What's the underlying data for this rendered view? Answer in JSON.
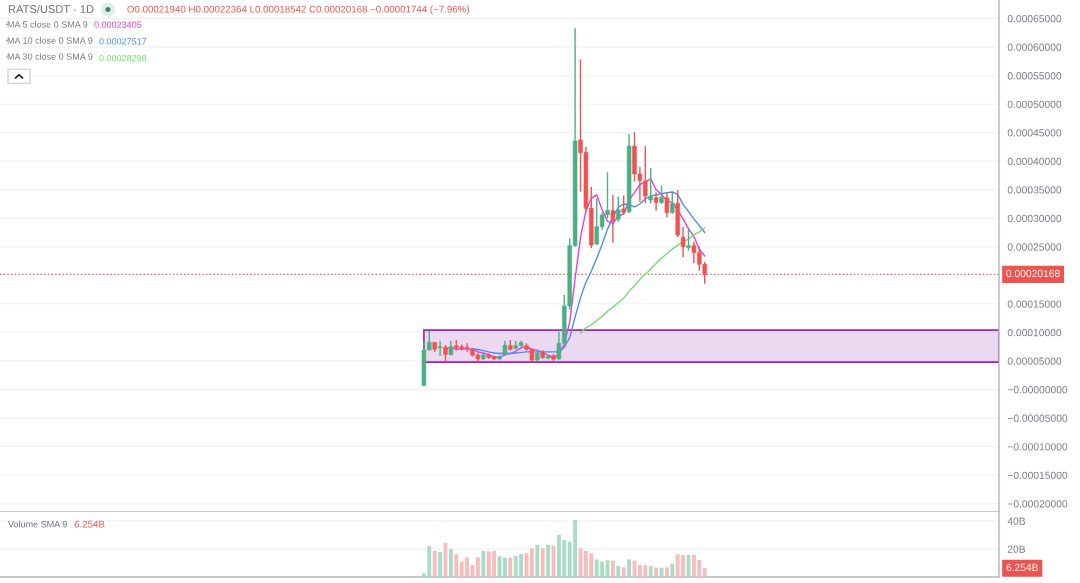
{
  "chart_data": [
    {
      "type": "candlestick",
      "title": "RATS/USDT · 1D",
      "annotations": [
        "O0.00021940 H0.00022364 L0.00018542 C0.00020168 −0.00001744 (−7.96%)",
        "0.00023405",
        "0.00027517",
        "0.00028298"
      ],
      "categories": [
        null,
        null,
        null,
        null,
        null,
        null,
        null,
        null,
        null,
        null,
        null,
        null,
        null,
        null,
        null,
        null,
        null,
        null,
        null,
        null,
        null,
        null,
        null,
        null,
        null,
        null,
        null,
        null,
        null,
        null,
        null,
        null,
        null,
        null,
        null,
        null,
        null,
        null,
        null,
        null,
        null,
        null,
        null,
        null,
        null,
        null,
        null,
        null,
        null,
        null,
        null,
        null,
        null,
        null,
        null,
        null,
        null,
        null,
        null,
        null,
        null,
        null,
        null,
        null,
        null,
        null,
        null,
        null,
        null,
        null,
        null,
        null,
        null,
        null,
        null,
        null,
        null,
        null,
        null,
        null,
        null,
        null,
        null,
        null,
        null,
        null,
        null,
        null,
        null,
        null,
        null,
        null,
        null,
        null,
        null,
        null,
        null,
        null,
        null,
        null,
        null,
        null,
        null,
        null,
        null,
        null,
        null,
        null,
        null,
        null,
        null,
        null,
        null,
        null,
        null,
        null,
        null,
        null,
        null,
        null,
        null,
        null,
        null,
        null,
        null,
        null,
        null,
        null,
        null,
        null,
        null,
        null,
        null,
        null,
        null,
        null,
        null,
        null,
        null,
        null,
        null,
        null,
        null,
        null,
        null,
        null,
        null,
        null,
        null,
        null,
        null,
        null,
        null,
        null,
        null,
        null,
        null,
        null,
        null,
        null,
        null,
        null,
        null,
        null,
        null,
        null,
        null,
        null,
        null,
        null,
        null,
        null,
        null,
        null,
        null,
        null,
        null,
        null,
        null,
        null,
        null,
        null,
        null,
        null,
        null
      ],
      "ohlc": [
        null,
        null,
        null,
        null,
        null,
        null,
        null,
        null,
        null,
        null,
        null,
        null,
        null,
        null,
        null,
        null,
        null,
        null,
        null,
        null,
        null,
        null,
        null,
        null,
        null,
        null,
        null,
        null,
        null,
        null,
        null,
        null,
        null,
        null,
        null,
        null,
        null,
        null,
        null,
        null,
        null,
        null,
        null,
        null,
        null,
        null,
        null,
        null,
        null,
        null,
        null,
        null,
        null,
        null,
        null,
        null,
        null,
        null,
        null,
        null,
        null,
        null,
        null,
        null,
        null,
        null,
        null,
        null,
        null,
        null,
        null,
        null,
        null,
        null,
        null,
        null,
        null,
        null,
        [
          6.7e-06,
          8.38e-05,
          6.7e-06,
          6.92e-05
        ],
        [
          6.92e-05,
          0.0001025,
          6.92e-05,
          8.27e-05
        ],
        [
          8.27e-05,
          8.3e-05,
          6.57e-05,
          7.05e-05
        ],
        [
          7.3e-05,
          8.55e-05,
          5.87e-05,
          7.5e-05
        ],
        [
          7.4e-05,
          7.8e-05,
          4.77e-05,
          6.17e-05
        ],
        [
          6.1e-05,
          8.55e-05,
          6e-05,
          7.5e-05
        ],
        [
          7.68e-05,
          8.67e-05,
          6.8e-05,
          7.33e-05
        ],
        [
          7.5e-05,
          7.9e-05,
          6.8e-05,
          7.2e-05
        ],
        [
          7.4e-05,
          8.1e-05,
          6.63e-05,
          7.3e-05
        ],
        [
          7.05e-05,
          7.3e-05,
          5.8e-05,
          6e-05
        ],
        [
          6.05e-05,
          6.4e-05,
          5e-05,
          5.35e-05
        ],
        [
          5.35e-05,
          6.4e-05,
          5.2e-05,
          6.05e-05
        ],
        [
          6.05e-05,
          6.3e-05,
          5.4e-05,
          5.58e-05
        ],
        [
          5.76e-05,
          5.9e-05,
          5.2e-05,
          5.35e-05
        ],
        [
          5.35e-05,
          6e-05,
          5.2e-05,
          5.76e-05
        ],
        [
          6.05e-05,
          8.55e-05,
          5.9e-05,
          7.75e-05
        ],
        [
          7.68e-05,
          8.67e-05,
          6.8e-05,
          7.05e-05
        ],
        [
          7.2e-05,
          8.55e-05,
          7e-05,
          7.68e-05
        ],
        [
          7.68e-05,
          8.55e-05,
          7.5e-05,
          8.2e-05
        ],
        [
          7.68e-05,
          8.1e-05,
          6.8e-05,
          7.05e-05
        ],
        [
          7.05e-05,
          7.2e-05,
          4.9e-05,
          5.17e-05
        ],
        [
          5.17e-05,
          6.9e-05,
          4.9e-05,
          6.35e-05
        ],
        [
          6.45e-05,
          6.9e-05,
          5.4e-05,
          5.58e-05
        ],
        [
          5.5e-05,
          6e-05,
          5.3e-05,
          5.76e-05
        ],
        [
          5.9e-05,
          6.2e-05,
          5e-05,
          5.3e-05
        ],
        [
          5.35e-05,
          0.0001013,
          5.2e-05,
          8.1e-05
        ],
        [
          8.1e-05,
          0.0001656,
          8e-05,
          0.0001463
        ],
        [
          0.0001463,
          0.000265,
          0.00014,
          0.000252
        ],
        [
          0.000252,
          0.0006328,
          0.00025,
          0.0004354
        ],
        [
          0.000437,
          0.0005785,
          0.0003466,
          0.000415
        ],
        [
          0.0004156,
          0.0004254,
          0.000312,
          0.0003175
        ],
        [
          0.0003175,
          0.000355,
          0.0002474,
          0.000253
        ],
        [
          0.000255,
          0.000334,
          0.000253,
          0.0002853
        ],
        [
          0.0002853,
          0.00031,
          0.0002795,
          0.0003057
        ],
        [
          0.000306,
          0.0003805,
          0.0003,
          0.000314
        ],
        [
          0.0003133,
          0.0003408,
          0.0002572,
          0.0002958
        ],
        [
          0.0002982,
          0.000338,
          0.000294,
          0.0003145
        ],
        [
          0.0003163,
          0.00034,
          0.000307,
          0.0003105
        ],
        [
          0.0003115,
          0.0004477,
          0.0003087,
          0.0004266
        ],
        [
          0.0004266,
          0.0004506,
          0.0003641,
          0.0003776
        ],
        [
          0.0003776,
          0.0003904,
          0.000329,
          0.000366
        ],
        [
          0.0003653,
          0.0004266,
          0.0003268,
          0.000339
        ],
        [
          0.000332,
          0.0003876,
          0.000326,
          0.0003378
        ],
        [
          0.000336,
          0.000345,
          0.0003133,
          0.000328
        ],
        [
          0.0003273,
          0.000357,
          0.000325,
          0.0003367
        ],
        [
          0.000336,
          0.000346,
          0.0003017,
          0.0003098
        ],
        [
          0.0003098,
          0.0003455,
          0.000308,
          0.000326
        ],
        [
          0.0003263,
          0.0003495,
          0.000267,
          0.0002707
        ],
        [
          0.0002667,
          0.000285,
          0.0002316,
          0.0002502
        ],
        [
          0.0002485,
          0.0002824,
          0.000243,
          0.000252
        ],
        [
          0.000252,
          0.000259,
          0.000221,
          0.0002397
        ],
        [
          0.0002397,
          0.00025,
          0.0002082,
          0.0002194
        ],
        [
          0.0002194,
          0.00022364,
          0.00018542,
          0.00020168
        ],
        null,
        null,
        null,
        null,
        null,
        null,
        null,
        null,
        null,
        null,
        null,
        null,
        null,
        null,
        null,
        null,
        null,
        null,
        null,
        null,
        null,
        null,
        null,
        null,
        null,
        null,
        null,
        null,
        null,
        null,
        null,
        null,
        null,
        null,
        null,
        null,
        null,
        null,
        null,
        null,
        null,
        null,
        null,
        null,
        null,
        null,
        null,
        null,
        null,
        null,
        null,
        null,
        null,
        null
      ],
      "colors": [
        null,
        null,
        null,
        null,
        null,
        null,
        null,
        null,
        null,
        null,
        null,
        null,
        null,
        null,
        null,
        null,
        null,
        null,
        null,
        null,
        null,
        null,
        null,
        null,
        null,
        null,
        null,
        null,
        null,
        null,
        null,
        null,
        null,
        null,
        null,
        null,
        null,
        null,
        null,
        null,
        null,
        null,
        null,
        null,
        null,
        null,
        null,
        null,
        null,
        null,
        null,
        null,
        null,
        null,
        null,
        null,
        null,
        null,
        null,
        null,
        null,
        null,
        null,
        null,
        null,
        null,
        null,
        null,
        null,
        null,
        null,
        null,
        null,
        null,
        null,
        null,
        null,
        null,
        "#4caf82",
        "#4caf82",
        "#ef5350",
        "#4caf82",
        "#ef5350",
        "#4caf82",
        "#ef5350",
        "#ef5350",
        "#ef5350",
        "#ef5350",
        "#ef5350",
        "#4caf82",
        "#ef5350",
        "#ef5350",
        "#4caf82",
        "#4caf82",
        "#ef5350",
        "#4caf82",
        "#4caf82",
        "#ef5350",
        "#ef5350",
        "#4caf82",
        "#ef5350",
        "#4caf82",
        "#ef5350",
        "#4caf82",
        "#4caf82",
        "#4caf82",
        "#4caf82",
        "#ef5350",
        "#ef5350",
        "#ef5350",
        "#4caf82",
        "#4caf82",
        "#4caf82",
        "#ef5350",
        "#4caf82",
        "#ef5350",
        "#4caf82",
        "#ef5350",
        "#ef5350",
        "#ef5350",
        "#4caf82",
        "#ef5350",
        "#4caf82",
        "#ef5350",
        "#4caf82",
        "#ef5350",
        "#ef5350",
        "#4caf82",
        "#ef5350",
        "#ef5350",
        "#ef5350",
        null,
        null,
        null,
        null,
        null,
        null,
        null,
        null,
        null,
        null,
        null,
        null,
        null,
        null,
        null,
        null,
        null,
        null,
        null,
        null,
        null,
        null,
        null,
        null,
        null,
        null,
        null,
        null,
        null,
        null,
        null,
        null,
        null,
        null,
        null,
        null,
        null,
        null,
        null,
        null,
        null,
        null,
        null,
        null,
        null,
        null,
        null,
        null,
        null,
        null,
        null,
        null,
        null,
        null
      ],
      "series": [
        {
          "name": "MA 5 close 0 SMA 9",
          "type": "line",
          "color": "#e040e0",
          "values": [
            null,
            null,
            null,
            null,
            null,
            null,
            null,
            null,
            null,
            null,
            null,
            null,
            null,
            null,
            null,
            null,
            null,
            null,
            null,
            null,
            null,
            null,
            null,
            null,
            null,
            null,
            null,
            null,
            null,
            null,
            null,
            null,
            null,
            null,
            null,
            null,
            null,
            null,
            null,
            null,
            null,
            null,
            null,
            null,
            null,
            null,
            null,
            null,
            null,
            null,
            null,
            null,
            null,
            null,
            null,
            null,
            null,
            null,
            null,
            null,
            null,
            null,
            null,
            null,
            null,
            null,
            null,
            null,
            null,
            null,
            null,
            null,
            null,
            null,
            null,
            null,
            null,
            null,
            null,
            null,
            null,
            null,
            7.2e-05,
            7.3e-05,
            7.1e-05,
            7.1e-05,
            7.1e-05,
            7.1e-05,
            6.6e-05,
            6.4e-05,
            6.1e-05,
            5.7e-05,
            5.6e-05,
            6.1e-05,
            6.3e-05,
            6.7e-05,
            7.3e-05,
            7.6e-05,
            7e-05,
            6.9e-05,
            6.5e-05,
            6e-05,
            5.6e-05,
            6.2e-05,
            7.9e-05,
            0.000118,
            0.000194,
            0.000266,
            0.000313,
            0.000335,
            0.000341,
            0.000315,
            0.000295,
            0.000291,
            0.000303,
            0.000308,
            0.000332,
            0.000345,
            0.000359,
            0.000364,
            0.000369,
            0.00035,
            0.000342,
            0.00033,
            0.000328,
            0.000314,
            0.000299,
            0.000282,
            0.000268,
            0.000246,
            0.00023405,
            null,
            null,
            null,
            null,
            null,
            null,
            null,
            null,
            null,
            null,
            null,
            null,
            null,
            null,
            null,
            null,
            null,
            null,
            null,
            null,
            null,
            null,
            null,
            null,
            null,
            null,
            null,
            null,
            null,
            null,
            null,
            null,
            null,
            null,
            null,
            null,
            null,
            null,
            null,
            null,
            null,
            null,
            null,
            null,
            null,
            null,
            null,
            null,
            null,
            null,
            null,
            null,
            null,
            null
          ]
        },
        {
          "name": "MA 10 close 0 SMA 9",
          "type": "line",
          "color": "#4a8cf5",
          "values": [
            null,
            null,
            null,
            null,
            null,
            null,
            null,
            null,
            null,
            null,
            null,
            null,
            null,
            null,
            null,
            null,
            null,
            null,
            null,
            null,
            null,
            null,
            null,
            null,
            null,
            null,
            null,
            null,
            null,
            null,
            null,
            null,
            null,
            null,
            null,
            null,
            null,
            null,
            null,
            null,
            null,
            null,
            null,
            null,
            null,
            null,
            null,
            null,
            null,
            null,
            null,
            null,
            null,
            null,
            null,
            null,
            null,
            null,
            null,
            null,
            null,
            null,
            null,
            null,
            null,
            null,
            null,
            null,
            null,
            null,
            null,
            null,
            null,
            null,
            null,
            null,
            null,
            null,
            null,
            null,
            null,
            null,
            null,
            null,
            null,
            null,
            null,
            7.1e-05,
            7e-05,
            6.8e-05,
            6.6e-05,
            6.4e-05,
            6.3e-05,
            6.4e-05,
            6.3e-05,
            6.4e-05,
            6.5e-05,
            6.6e-05,
            6.6e-05,
            6.6e-05,
            6.6e-05,
            6.6e-05,
            6.6e-05,
            6.6e-05,
            7.4e-05,
            9.1e-05,
            0.000127,
            0.000161,
            0.000188,
            0.000207,
            0.00023,
            0.000254,
            0.000281,
            0.000302,
            0.000319,
            0.000325,
            0.000324,
            0.00032,
            0.000325,
            0.000334,
            0.000339,
            0.000341,
            0.000343,
            0.000345,
            0.000346,
            0.000342,
            0.000324,
            0.000312,
            0.000299,
            0.000287,
            0.00027517,
            null,
            null,
            null,
            null,
            null,
            null,
            null,
            null,
            null,
            null,
            null,
            null,
            null,
            null,
            null,
            null,
            null,
            null,
            null,
            null,
            null,
            null,
            null,
            null,
            null,
            null,
            null,
            null,
            null,
            null,
            null,
            null,
            null,
            null,
            null,
            null,
            null,
            null,
            null,
            null,
            null,
            null,
            null,
            null,
            null,
            null,
            null,
            null,
            null,
            null,
            null,
            null,
            null,
            null
          ]
        },
        {
          "name": "MA 30 close 0 SMA 9",
          "type": "line",
          "color": "#6fdc6f",
          "values": [
            null,
            null,
            null,
            null,
            null,
            null,
            null,
            null,
            null,
            null,
            null,
            null,
            null,
            null,
            null,
            null,
            null,
            null,
            null,
            null,
            null,
            null,
            null,
            null,
            null,
            null,
            null,
            null,
            null,
            null,
            null,
            null,
            null,
            null,
            null,
            null,
            null,
            null,
            null,
            null,
            null,
            null,
            null,
            null,
            null,
            null,
            null,
            null,
            null,
            null,
            null,
            null,
            null,
            null,
            null,
            null,
            null,
            null,
            null,
            null,
            null,
            null,
            null,
            null,
            null,
            null,
            null,
            null,
            null,
            null,
            null,
            null,
            null,
            null,
            null,
            null,
            null,
            null,
            null,
            null,
            null,
            null,
            null,
            null,
            null,
            null,
            null,
            null,
            null,
            null,
            null,
            null,
            null,
            null,
            null,
            null,
            null,
            null,
            null,
            null,
            null,
            null,
            null,
            null,
            null,
            null,
            null,
            9.9e-05,
            0.000108,
            0.000113,
            0.000121,
            0.000128,
            0.000137,
            0.000144,
            0.000152,
            0.00016,
            0.000172,
            0.000182,
            0.000193,
            0.000202,
            0.000211,
            0.000221,
            0.00023,
            0.000238,
            0.000246,
            0.000253,
            0.000258,
            0.000264,
            0.000271,
            0.000276,
            0.00028298,
            null,
            null,
            null,
            null,
            null,
            null,
            null,
            null,
            null,
            null,
            null,
            null,
            null,
            null,
            null,
            null,
            null,
            null,
            null,
            null,
            null,
            null,
            null,
            null,
            null,
            null,
            null,
            null,
            null,
            null,
            null,
            null,
            null,
            null,
            null,
            null,
            null,
            null,
            null,
            null,
            null,
            null,
            null,
            null,
            null,
            null,
            null,
            null,
            null,
            null,
            null,
            null,
            null,
            null
          ]
        }
      ],
      "ylim": [
        -0.0002146,
        0.0006824
      ],
      "yticks": [
        {
          "value": 0.00065,
          "label": "0.00065000"
        },
        {
          "value": 0.0006,
          "label": "0.00060000"
        },
        {
          "value": 0.00055,
          "label": "0.00055000"
        },
        {
          "value": 0.0005,
          "label": "0.00050000"
        },
        {
          "value": 0.00045,
          "label": "0.00045000"
        },
        {
          "value": 0.0004,
          "label": "0.00040000"
        },
        {
          "value": 0.00035,
          "label": "0.00035000"
        },
        {
          "value": 0.0003,
          "label": "0.00030000"
        },
        {
          "value": 0.00025,
          "label": "0.00025000"
        },
        {
          "value": 0.00015,
          "label": "0.00015000"
        },
        {
          "value": 0.0001,
          "label": "0.00010000"
        },
        {
          "value": 5e-05,
          "label": "0.00005000"
        },
        {
          "value": 0,
          "label": "−0.00000000"
        },
        {
          "value": -5e-05,
          "label": "−0.00005000"
        },
        {
          "value": -0.0001,
          "label": "−0.00010000"
        },
        {
          "value": -0.00015,
          "label": "−0.00015000"
        },
        {
          "value": -0.0002,
          "label": "−0.00020000"
        }
      ],
      "grid": "y",
      "legend": "top left",
      "tick_labels": "y",
      "ref_lines": [
        {
          "axis": "y",
          "value": 0.00020168,
          "label": "0.00020168",
          "color": "#ef5350",
          "line_style": "dotted"
        }
      ],
      "bands": [
        {
          "axis": "y",
          "from": 4.8e-05,
          "to": 0.000104,
          "color": "#9c27b0"
        }
      ]
    },
    {
      "type": "bar",
      "title": "Volume SMA 9",
      "annotations": [
        "6.254B",
        "6.254B"
      ],
      "categories": [
        null,
        null,
        null,
        null,
        null,
        null,
        null,
        null,
        null,
        null,
        null,
        null,
        null,
        null,
        null,
        null,
        null,
        null,
        null,
        null,
        null,
        null,
        null,
        null,
        null,
        null,
        null,
        null,
        null,
        null,
        null,
        null,
        null,
        null,
        null,
        null,
        null,
        null,
        null,
        null,
        null,
        null,
        null,
        null,
        null,
        null,
        null,
        null,
        null,
        null,
        null,
        null,
        null,
        null,
        null,
        null,
        null,
        null,
        null,
        null,
        null,
        null,
        null,
        null,
        null,
        null,
        null,
        null,
        null,
        null,
        null,
        null,
        null,
        null,
        null,
        null,
        null,
        null,
        null,
        null,
        null,
        null,
        null,
        null,
        null,
        null,
        null,
        null,
        null,
        null,
        null,
        null,
        null,
        null,
        null,
        null,
        null,
        null,
        null,
        null,
        null,
        null,
        null,
        null,
        null,
        null,
        null,
        null,
        null,
        null,
        null,
        null,
        null,
        null,
        null,
        null,
        null,
        null,
        null,
        null,
        null,
        null,
        null,
        null,
        null,
        null,
        null,
        null,
        null,
        null,
        null,
        null,
        null,
        null,
        null,
        null,
        null,
        null,
        null,
        null,
        null,
        null,
        null,
        null,
        null,
        null,
        null,
        null,
        null,
        null,
        null,
        null,
        null,
        null,
        null,
        null,
        null,
        null,
        null,
        null,
        null,
        null,
        null,
        null,
        null,
        null,
        null,
        null,
        null,
        null,
        null,
        null,
        null,
        null,
        null,
        null,
        null,
        null,
        null,
        null,
        null,
        null,
        null,
        null,
        null
      ],
      "values": [
        null,
        null,
        null,
        null,
        null,
        null,
        null,
        null,
        null,
        null,
        null,
        null,
        null,
        null,
        null,
        null,
        null,
        null,
        null,
        null,
        null,
        null,
        null,
        null,
        null,
        null,
        null,
        null,
        null,
        null,
        null,
        null,
        null,
        null,
        null,
        null,
        null,
        null,
        null,
        null,
        null,
        null,
        null,
        null,
        null,
        null,
        null,
        null,
        null,
        null,
        null,
        null,
        null,
        null,
        null,
        null,
        null,
        null,
        null,
        null,
        null,
        null,
        null,
        null,
        null,
        null,
        null,
        null,
        null,
        null,
        null,
        null,
        null,
        null,
        null,
        null,
        null,
        null,
        2.6,
        22.1,
        18.6,
        17.9,
        24.3,
        20.0,
        16.2,
        10.9,
        14.0,
        8.6,
        14.0,
        18.6,
        18.3,
        18.8,
        14.8,
        13.8,
        13.8,
        15.0,
        16.4,
        16.9,
        20.5,
        22.9,
        20.5,
        22.9,
        22.4,
        30.0,
        26.4,
        25.2,
        40.7,
        20.5,
        18.6,
        16.9,
        12.6,
        11.0,
        11.9,
        11.7,
        7.9,
        6.9,
        12.6,
        11.7,
        8.6,
        8.3,
        7.9,
        6.7,
        6.7,
        6.9,
        9.5,
        16.2,
        15.7,
        15.7,
        15.7,
        12.1,
        6.254,
        null,
        null,
        null,
        null,
        null,
        null,
        null,
        null,
        null,
        null,
        null,
        null,
        null,
        null,
        null,
        null,
        null,
        null,
        null,
        null,
        null,
        null,
        null,
        null,
        null,
        null,
        null,
        null,
        null,
        null,
        null,
        null,
        null,
        null,
        null,
        null,
        null,
        null,
        null,
        null,
        null,
        null,
        null,
        null,
        null,
        null,
        null,
        null,
        null,
        null,
        null,
        null,
        null,
        null
      ],
      "colors": [
        null,
        null,
        null,
        null,
        null,
        null,
        null,
        null,
        null,
        null,
        null,
        null,
        null,
        null,
        null,
        null,
        null,
        null,
        null,
        null,
        null,
        null,
        null,
        null,
        null,
        null,
        null,
        null,
        null,
        null,
        null,
        null,
        null,
        null,
        null,
        null,
        null,
        null,
        null,
        null,
        null,
        null,
        null,
        null,
        null,
        null,
        null,
        null,
        null,
        null,
        null,
        null,
        null,
        null,
        null,
        null,
        null,
        null,
        null,
        null,
        null,
        null,
        null,
        null,
        null,
        null,
        null,
        null,
        null,
        null,
        null,
        null,
        null,
        null,
        null,
        null,
        null,
        null,
        "#a8dcc8",
        "#a8dcc8",
        "#f7bcbc",
        "#a8dcc8",
        "#f7bcbc",
        "#a8dcc8",
        "#f7bcbc",
        "#f7bcbc",
        "#f7bcbc",
        "#f7bcbc",
        "#f7bcbc",
        "#a8dcc8",
        "#f7bcbc",
        "#f7bcbc",
        "#a8dcc8",
        "#a8dcc8",
        "#f7bcbc",
        "#a8dcc8",
        "#a8dcc8",
        "#f7bcbc",
        "#f7bcbc",
        "#a8dcc8",
        "#f7bcbc",
        "#a8dcc8",
        "#f7bcbc",
        "#a8dcc8",
        "#a8dcc8",
        "#a8dcc8",
        "#a8dcc8",
        "#f7bcbc",
        "#f7bcbc",
        "#f7bcbc",
        "#a8dcc8",
        "#a8dcc8",
        "#a8dcc8",
        "#f7bcbc",
        "#a8dcc8",
        "#f7bcbc",
        "#a8dcc8",
        "#f7bcbc",
        "#f7bcbc",
        "#f7bcbc",
        "#a8dcc8",
        "#f7bcbc",
        "#a8dcc8",
        "#f7bcbc",
        "#a8dcc8",
        "#f7bcbc",
        "#f7bcbc",
        "#a8dcc8",
        "#f7bcbc",
        "#f7bcbc",
        "#f7bcbc",
        null,
        null,
        null,
        null,
        null,
        null,
        null,
        null,
        null,
        null,
        null,
        null,
        null,
        null,
        null,
        null,
        null,
        null,
        null,
        null,
        null,
        null,
        null,
        null,
        null,
        null,
        null,
        null,
        null,
        null,
        null,
        null,
        null,
        null,
        null,
        null,
        null,
        null,
        null,
        null,
        null,
        null,
        null,
        null,
        null,
        null,
        null,
        null,
        null,
        null,
        null,
        null,
        null,
        null
      ],
      "ylim": [
        0,
        46.4
      ],
      "yticks": [
        {
          "value": 20,
          "label": "20B"
        },
        {
          "value": 40,
          "label": "40B"
        }
      ],
      "grid": "y",
      "tick_labels": "y"
    }
  ]
}
